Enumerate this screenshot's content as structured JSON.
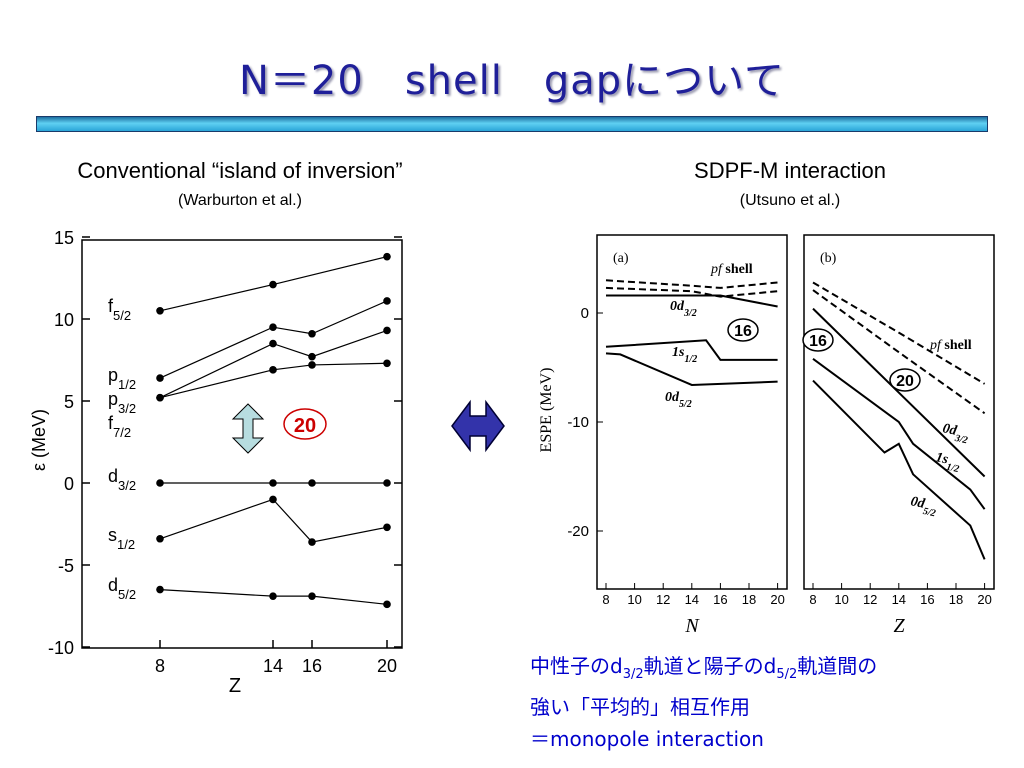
{
  "title": "N＝20　shell　gapについて",
  "left": {
    "heading": "Conventional “island of inversion”",
    "subheading": "(Warburton et al.)"
  },
  "right": {
    "heading": "SDPF-M interaction",
    "subheading": "(Utsuno et al.)"
  },
  "gap_label": "20",
  "caption": {
    "line1_a": "中性子のd",
    "line1_sub1": "3/2",
    "line1_b": "軌道と陽子のd",
    "line1_sub2": "5/2",
    "line1_c": "軌道間の",
    "line2": "強い「平均的」相互作用",
    "line3": "＝monopole interaction"
  },
  "chart_data": [
    {
      "type": "line",
      "xlabel": "Z",
      "ylabel": "ε (MeV)",
      "x_ticks": [
        8,
        14,
        16,
        20
      ],
      "y_ticks": [
        15,
        10,
        5,
        0,
        -5,
        -10
      ],
      "ylim": [
        -10,
        15
      ],
      "series": [
        {
          "name": "f5/2",
          "x": [
            8,
            14,
            20
          ],
          "y": [
            10.5,
            12.1,
            13.8
          ]
        },
        {
          "name": "p1/2",
          "x": [
            8,
            14,
            16,
            20
          ],
          "y": [
            6.4,
            9.5,
            9.1,
            11.1
          ]
        },
        {
          "name": "p3/2",
          "x": [
            8,
            14,
            16,
            20
          ],
          "y": [
            5.2,
            8.5,
            7.7,
            9.3
          ]
        },
        {
          "name": "f7/2",
          "x": [
            8,
            14,
            16,
            20
          ],
          "y": [
            5.2,
            6.9,
            7.2,
            7.3
          ]
        },
        {
          "name": "d3/2",
          "x": [
            8,
            14,
            16,
            20
          ],
          "y": [
            0,
            0,
            0,
            0
          ]
        },
        {
          "name": "s1/2",
          "x": [
            8,
            14,
            16,
            20
          ],
          "y": [
            -3.4,
            -1.0,
            -3.6,
            -2.7
          ]
        },
        {
          "name": "d5/2",
          "x": [
            8,
            14,
            16,
            20
          ],
          "y": [
            -6.5,
            -6.9,
            -6.9,
            -7.4
          ]
        }
      ],
      "labels": [
        {
          "base": "f",
          "sub": "5/2"
        },
        {
          "base": "p",
          "sub": "1/2"
        },
        {
          "base": "p",
          "sub": "3/2"
        },
        {
          "base": "f",
          "sub": "7/2"
        },
        {
          "base": "d",
          "sub": "3/2"
        },
        {
          "base": "s",
          "sub": "1/2"
        },
        {
          "base": "d",
          "sub": "5/2"
        }
      ]
    },
    {
      "type": "line",
      "panel": "(a)",
      "xlabel": "N",
      "ylabel": "ESPE (MeV)",
      "x_ticks": [
        8,
        10,
        12,
        14,
        16,
        18,
        20
      ],
      "y_ticks": [
        0,
        -10,
        -20
      ],
      "xlim": [
        7,
        21
      ],
      "ylim": [
        -25,
        6.5
      ],
      "series": [
        {
          "name": "pf shell",
          "style": "dashed",
          "x": [
            8,
            14,
            16,
            20
          ],
          "y": [
            3.0,
            2.5,
            2.3,
            2.8
          ]
        },
        {
          "name": "pf shell",
          "style": "dashed",
          "x": [
            8,
            14,
            16,
            20
          ],
          "y": [
            2.3,
            2.0,
            1.5,
            2.0
          ]
        },
        {
          "name": "0d3/2",
          "x": [
            8,
            16,
            20
          ],
          "y": [
            1.6,
            1.6,
            0.6
          ]
        },
        {
          "name": "1s1/2",
          "x": [
            8,
            15,
            16,
            20
          ],
          "y": [
            -3.1,
            -2.5,
            -4.3,
            -4.3
          ]
        },
        {
          "name": "0d5/2",
          "x": [
            8,
            9,
            14,
            20
          ],
          "y": [
            -3.7,
            -3.8,
            -6.6,
            -6.3
          ]
        }
      ],
      "labels": [
        "pf shell",
        "0d3/2",
        "1s1/2",
        "0d5/2"
      ],
      "circled": "16"
    },
    {
      "type": "line",
      "panel": "(b)",
      "xlabel": "Z",
      "x_ticks": [
        8,
        10,
        12,
        14,
        16,
        18,
        20
      ],
      "xlim": [
        7,
        21
      ],
      "ylim": [
        -25,
        6.5
      ],
      "series": [
        {
          "name": "pf shell",
          "style": "dashed",
          "x": [
            8,
            14,
            20
          ],
          "y": [
            2.8,
            -1.8,
            -6.5
          ]
        },
        {
          "name": "pf shell",
          "style": "dashed",
          "x": [
            8,
            14,
            20
          ],
          "y": [
            2.1,
            -3.6,
            -9.2
          ]
        },
        {
          "name": "0d3/2",
          "x": [
            8,
            20
          ],
          "y": [
            0.4,
            -15.0
          ]
        },
        {
          "name": "1s1/2",
          "x": [
            8,
            14,
            15,
            19,
            20
          ],
          "y": [
            -4.2,
            -10.0,
            -12.0,
            -16.2,
            -18.0
          ]
        },
        {
          "name": "0d5/2",
          "x": [
            8,
            13,
            14,
            15,
            19,
            20
          ],
          "y": [
            -6.2,
            -12.8,
            -12.0,
            -14.8,
            -19.5,
            -22.6
          ]
        }
      ],
      "labels": [
        "pf shell",
        "0d3/2",
        "1s1/2",
        "0d5/2"
      ],
      "circled": [
        "16",
        "20"
      ]
    }
  ]
}
